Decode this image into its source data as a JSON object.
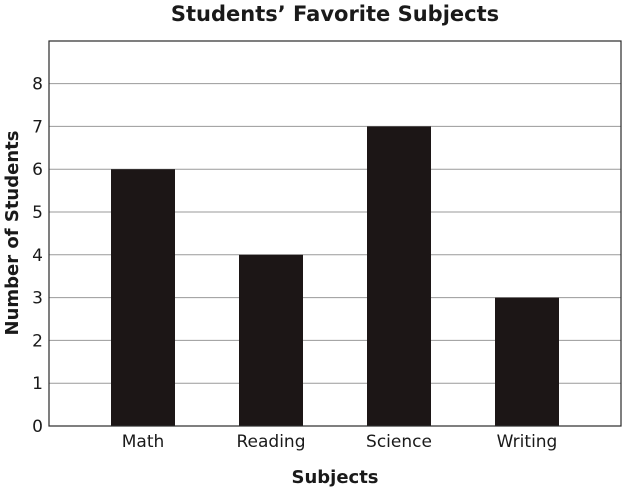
{
  "chart_data": {
    "type": "bar",
    "title": "Students’ Favorite Subjects",
    "xlabel": "Subjects",
    "ylabel": "Number of Students",
    "categories": [
      "Math",
      "Reading",
      "Science",
      "Writing"
    ],
    "values": [
      6,
      4,
      7,
      3
    ],
    "ylim": [
      0,
      9
    ],
    "yticks": [
      0,
      1,
      2,
      3,
      4,
      5,
      6,
      7,
      8
    ],
    "grid": true,
    "bar_color": "#1c1616"
  }
}
